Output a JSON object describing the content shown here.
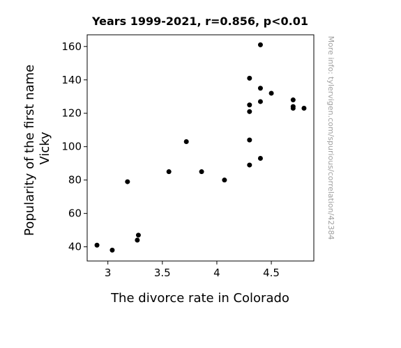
{
  "chart_data": {
    "type": "scatter",
    "title": "Years 1999-2021, r=0.856, p<0.01",
    "xlabel": "The divorce rate in Colorado",
    "ylabel_lines": [
      "Popularity of the first name",
      "Vicky"
    ],
    "watermark": "More info: tylervigen.com/spurious/correlation/42384",
    "xlim": [
      2.81,
      4.89
    ],
    "ylim": [
      31.5,
      167
    ],
    "xticks": [
      3,
      3.5,
      4,
      4.5
    ],
    "xtick_labels": [
      "3",
      "3.5",
      "4",
      "4.5"
    ],
    "yticks": [
      40,
      60,
      80,
      100,
      120,
      140,
      160
    ],
    "ytick_labels": [
      "40",
      "60",
      "80",
      "100",
      "120",
      "140",
      "160"
    ],
    "point_color": "#000000",
    "grid": false,
    "points": [
      {
        "x": 2.9,
        "y": 41
      },
      {
        "x": 3.04,
        "y": 38
      },
      {
        "x": 3.18,
        "y": 79
      },
      {
        "x": 3.27,
        "y": 44
      },
      {
        "x": 3.28,
        "y": 47
      },
      {
        "x": 3.56,
        "y": 85
      },
      {
        "x": 3.72,
        "y": 103
      },
      {
        "x": 3.86,
        "y": 85
      },
      {
        "x": 4.07,
        "y": 80
      },
      {
        "x": 4.3,
        "y": 141
      },
      {
        "x": 4.3,
        "y": 125
      },
      {
        "x": 4.3,
        "y": 121
      },
      {
        "x": 4.3,
        "y": 104
      },
      {
        "x": 4.3,
        "y": 89
      },
      {
        "x": 4.4,
        "y": 161
      },
      {
        "x": 4.4,
        "y": 135
      },
      {
        "x": 4.4,
        "y": 127
      },
      {
        "x": 4.4,
        "y": 93
      },
      {
        "x": 4.5,
        "y": 132
      },
      {
        "x": 4.7,
        "y": 128
      },
      {
        "x": 4.7,
        "y": 124
      },
      {
        "x": 4.7,
        "y": 123
      },
      {
        "x": 4.8,
        "y": 123
      }
    ]
  }
}
